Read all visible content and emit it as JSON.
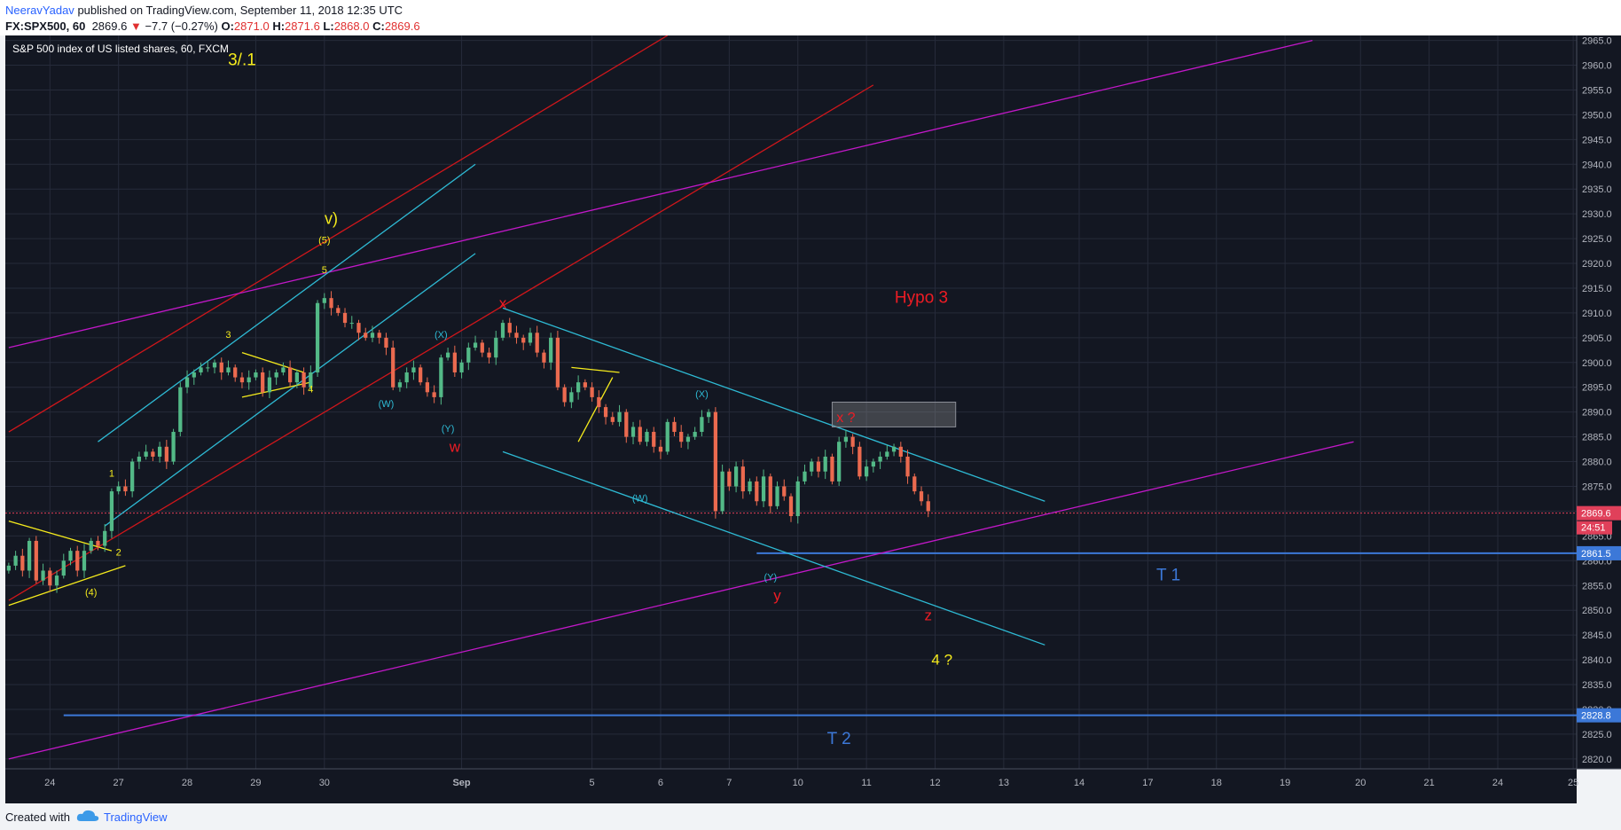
{
  "header": {
    "author": "NeeravYadav",
    "published_text": "published on TradingView.com, September 11, 2018 12:35 UTC",
    "symbol": "FX:SPX500, 60",
    "last": "2869.6",
    "change_arrow": "▼",
    "change": "−7.7 (−0.27%)",
    "o_label": "O:",
    "o_value": "2871.0",
    "h_label": "H:",
    "h_value": "2871.6",
    "l_label": "L:",
    "l_value": "2868.0",
    "c_label": "C:",
    "c_value": "2869.6"
  },
  "chart_title": "S&P 500 index of US listed shares, 60, FXCM",
  "footer": {
    "created_with": "Created with",
    "brand": "TradingView"
  },
  "colors": {
    "background": "#131722",
    "grid": "#262b3a",
    "up": "#53b987",
    "down": "#eb6a4f",
    "red_channel": "#d0161b",
    "cyan": "#2ebad4",
    "magenta": "#c218c8",
    "yellow_label": "#f5eb1c",
    "target_line": "#3c78d8",
    "text_red": "#ee1c24"
  },
  "chart_data": {
    "type": "candlestick",
    "title": "S&P 500 index of US listed shares, 60, FXCM",
    "ylim": [
      2818,
      2966
    ],
    "y_ticks": [
      2820,
      2825,
      2830,
      2835,
      2840,
      2845,
      2850,
      2855,
      2860,
      2865,
      2870,
      2875,
      2880,
      2885,
      2890,
      2895,
      2900,
      2905,
      2910,
      2915,
      2920,
      2925,
      2930,
      2935,
      2940,
      2945,
      2950,
      2955,
      2960,
      2965
    ],
    "x_ticks": [
      {
        "label": "24",
        "i": 6
      },
      {
        "label": "27",
        "i": 16
      },
      {
        "label": "28",
        "i": 26
      },
      {
        "label": "29",
        "i": 36
      },
      {
        "label": "30",
        "i": 46
      },
      {
        "label": "Sep",
        "i": 66
      },
      {
        "label": "5",
        "i": 85
      },
      {
        "label": "6",
        "i": 95
      },
      {
        "label": "7",
        "i": 105
      },
      {
        "label": "10",
        "i": 115
      },
      {
        "label": "11",
        "i": 125
      },
      {
        "label": "12",
        "i": 135
      },
      {
        "label": "13",
        "i": 145
      },
      {
        "label": "14",
        "i": 156
      },
      {
        "label": "17",
        "i": 166
      },
      {
        "label": "18",
        "i": 176
      },
      {
        "label": "19",
        "i": 186
      },
      {
        "label": "20",
        "i": 197
      },
      {
        "label": "21",
        "i": 207
      },
      {
        "label": "24",
        "i": 217
      },
      {
        "label": "25",
        "i": 228
      }
    ],
    "n_slots": 229,
    "closes": [
      2859,
      2861,
      2858,
      2864,
      2856,
      2858,
      2855,
      2857,
      2860,
      2862,
      2858,
      2862,
      2864,
      2863,
      2866,
      2874,
      2875,
      2874,
      2880,
      2881,
      2882,
      2881,
      2883,
      2880,
      2886,
      2895,
      2897,
      2898,
      2899,
      2899,
      2900,
      2898,
      2899,
      2897,
      2896,
      2897,
      2898,
      2894,
      2897,
      2898,
      2899,
      2896,
      2898,
      2895,
      2898,
      2912,
      2913,
      2911,
      2910,
      2908,
      2908,
      2906,
      2905,
      2906,
      2905,
      2903,
      2895,
      2896,
      2898,
      2899,
      2896,
      2894,
      2893,
      2901,
      2902,
      2898,
      2900,
      2903,
      2904,
      2902,
      2901,
      2905,
      2908,
      2906,
      2905,
      2904,
      2906,
      2902,
      2900,
      2905,
      2895,
      2892,
      2894,
      2896,
      2895,
      2893,
      2891,
      2889,
      2888,
      2890,
      2885,
      2887,
      2884,
      2886,
      2883,
      2882,
      2888,
      2886,
      2884,
      2885,
      2886,
      2889,
      2890,
      2870,
      2878,
      2875,
      2879,
      2874,
      2876,
      2872,
      2877,
      2871,
      2875,
      2873,
      2869,
      2876,
      2878,
      2880,
      2878,
      2881,
      2876,
      2884,
      2885,
      2883,
      2877,
      2879,
      2880,
      2881,
      2882,
      2883,
      2881,
      2877,
      2874,
      2872,
      2870
    ],
    "last_price": 2869.6,
    "price_labels": [
      {
        "value": "2869.6",
        "countdown": "24:51"
      },
      {
        "value": "2861.5"
      },
      {
        "value": "2828.8"
      }
    ],
    "levels": [
      {
        "name": "T 1",
        "price": 2861.5
      },
      {
        "name": "T 2",
        "price": 2828.8
      }
    ],
    "lines": [
      {
        "kind": "red",
        "from": [
          0,
          2886
        ],
        "to": [
          96,
          2966
        ]
      },
      {
        "kind": "red",
        "from": [
          0,
          2852
        ],
        "to": [
          126,
          2956
        ]
      },
      {
        "kind": "magenta",
        "from": [
          0,
          2903
        ],
        "to": [
          190,
          2965
        ]
      },
      {
        "kind": "magenta",
        "from": [
          0,
          2820
        ],
        "to": [
          196,
          2884
        ]
      },
      {
        "kind": "cyan",
        "from": [
          13,
          2884
        ],
        "to": [
          68,
          2940
        ]
      },
      {
        "kind": "cyan",
        "from": [
          14,
          2867
        ],
        "to": [
          68,
          2922
        ]
      },
      {
        "kind": "cyan",
        "from": [
          72,
          2911
        ],
        "to": [
          151,
          2872
        ]
      },
      {
        "kind": "cyan",
        "from": [
          72,
          2882
        ],
        "to": [
          151,
          2843
        ]
      },
      {
        "kind": "yellow",
        "from": [
          0,
          2868
        ],
        "to": [
          15,
          2862
        ]
      },
      {
        "kind": "yellow",
        "from": [
          0,
          2851
        ],
        "to": [
          17,
          2859
        ]
      },
      {
        "kind": "yellow",
        "from": [
          34,
          2902
        ],
        "to": [
          43,
          2898
        ]
      },
      {
        "kind": "yellow",
        "from": [
          34,
          2893
        ],
        "to": [
          44,
          2896
        ]
      },
      {
        "kind": "yellow",
        "from": [
          82,
          2899
        ],
        "to": [
          89,
          2898
        ]
      },
      {
        "kind": "yellow",
        "from": [
          83,
          2884
        ],
        "to": [
          88,
          2897
        ]
      }
    ],
    "annotations": [
      {
        "text": "3/.1",
        "i": 34,
        "price": 2960,
        "color": "yellow",
        "size": 19
      },
      {
        "text": "v)",
        "i": 47,
        "price": 2928,
        "color": "yellow",
        "size": 18
      },
      {
        "text": "(5)",
        "i": 46,
        "price": 2924,
        "color": "yellow",
        "size": 11
      },
      {
        "text": "5",
        "i": 46,
        "price": 2918,
        "color": "yellow",
        "size": 11
      },
      {
        "text": "3",
        "i": 32,
        "price": 2905,
        "color": "yellow",
        "size": 11
      },
      {
        "text": "4",
        "i": 44,
        "price": 2894,
        "color": "yellow",
        "size": 11
      },
      {
        "text": "1",
        "i": 15,
        "price": 2877,
        "color": "yellow",
        "size": 11
      },
      {
        "text": "2",
        "i": 16,
        "price": 2861,
        "color": "yellow",
        "size": 11
      },
      {
        "text": "(4)",
        "i": 12,
        "price": 2853,
        "color": "yellow",
        "size": 11
      },
      {
        "text": "(W)",
        "i": 55,
        "price": 2891,
        "color": "cyan",
        "size": 11
      },
      {
        "text": "(X)",
        "i": 63,
        "price": 2905,
        "color": "cyan",
        "size": 11
      },
      {
        "text": "(Y)",
        "i": 64,
        "price": 2886,
        "color": "cyan",
        "size": 11
      },
      {
        "text": "(X)",
        "i": 101,
        "price": 2893,
        "color": "cyan",
        "size": 11
      },
      {
        "text": "(W)",
        "i": 92,
        "price": 2872,
        "color": "cyan",
        "size": 11
      },
      {
        "text": "(Y)",
        "i": 111,
        "price": 2856,
        "color": "cyan",
        "size": 11
      },
      {
        "text": "x",
        "i": 72,
        "price": 2911,
        "color": "red",
        "size": 17
      },
      {
        "text": "w",
        "i": 65,
        "price": 2882,
        "color": "red",
        "size": 17
      },
      {
        "text": "x ?",
        "i": 122,
        "price": 2888,
        "color": "red",
        "size": 16
      },
      {
        "text": "Hypo 3",
        "i": 133,
        "price": 2912,
        "color": "red",
        "size": 19
      },
      {
        "text": "y",
        "i": 112,
        "price": 2852,
        "color": "red",
        "size": 17
      },
      {
        "text": "z",
        "i": 134,
        "price": 2848,
        "color": "red",
        "size": 17
      },
      {
        "text": "4 ?",
        "i": 136,
        "price": 2839,
        "color": "yellow",
        "size": 17
      },
      {
        "text": "T 1",
        "i": 169,
        "price": 2856,
        "color": "blue",
        "size": 19
      },
      {
        "text": "T 2",
        "i": 121,
        "price": 2823,
        "color": "blue",
        "size": 19
      }
    ],
    "box": {
      "from": [
        120,
        2892
      ],
      "to": [
        138,
        2887
      ]
    }
  }
}
